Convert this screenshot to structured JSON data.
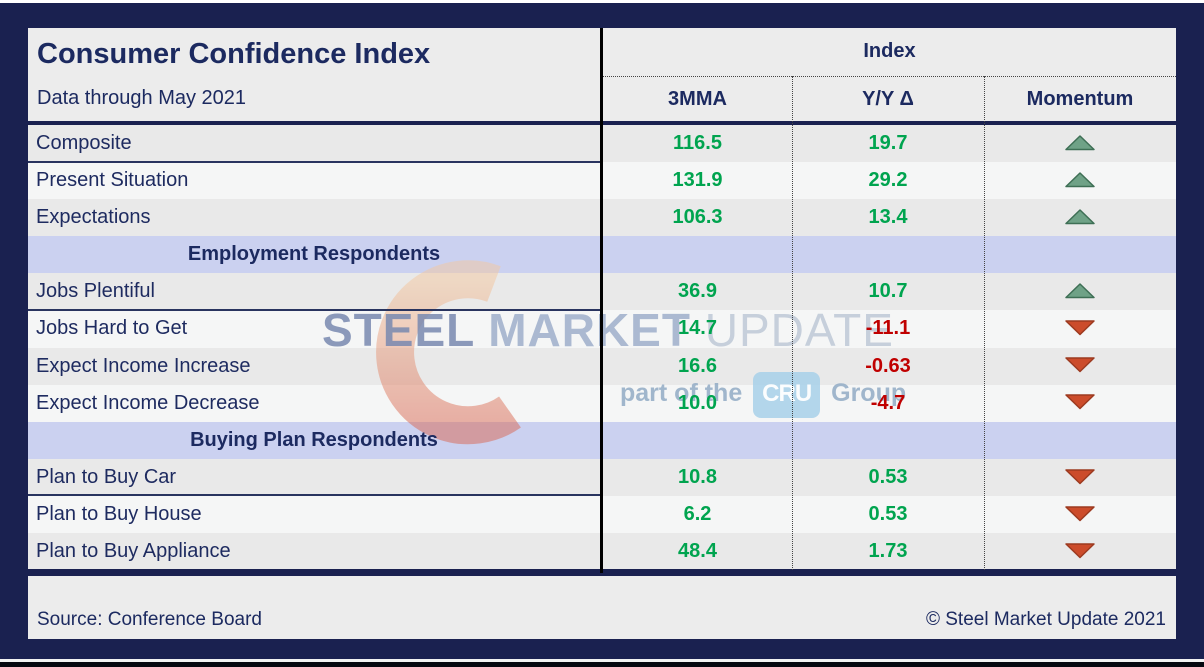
{
  "header": {
    "title": "Consumer Confidence Index",
    "subtitle": "Data through May 2021",
    "index_group_label": "Index",
    "columns": [
      "3MMA",
      "Y/Y Δ",
      "Momentum"
    ]
  },
  "rows": [
    {
      "type": "data",
      "label": "Composite",
      "mma": "116.5",
      "yy": "19.7",
      "momentum": "up",
      "divider": true
    },
    {
      "type": "data",
      "label": "Present Situation",
      "mma": "131.9",
      "yy": "29.2",
      "momentum": "up"
    },
    {
      "type": "data",
      "label": "Expectations",
      "mma": "106.3",
      "yy": "13.4",
      "momentum": "up"
    },
    {
      "type": "section",
      "label": "Employment Respondents"
    },
    {
      "type": "data",
      "label": "Jobs Plentiful",
      "mma": "36.9",
      "yy": "10.7",
      "momentum": "up",
      "divider": true
    },
    {
      "type": "data",
      "label": "Jobs Hard to Get",
      "mma": "14.7",
      "yy": "-11.1",
      "momentum": "down"
    },
    {
      "type": "data",
      "label": "Expect Income Increase",
      "mma": "16.6",
      "yy": "-0.63",
      "momentum": "down"
    },
    {
      "type": "data",
      "label": "Expect Income Decrease",
      "mma": "10.0",
      "yy": "-4.7",
      "momentum": "down"
    },
    {
      "type": "section",
      "label": "Buying Plan Respondents"
    },
    {
      "type": "data",
      "label": "Plan to Buy Car",
      "mma": "10.8",
      "yy": "0.53",
      "momentum": "down",
      "divider": true
    },
    {
      "type": "data",
      "label": "Plan to Buy House",
      "mma": "6.2",
      "yy": "0.53",
      "momentum": "down"
    },
    {
      "type": "data",
      "label": "Plan to Buy Appliance",
      "mma": "48.4",
      "yy": "1.73",
      "momentum": "down"
    }
  ],
  "footer": {
    "source": "Source: Conference Board",
    "copyright": "© Steel Market Update 2021"
  },
  "watermark": {
    "brand": [
      "STEEL",
      "MARKET",
      "UPDATE"
    ],
    "tagline_prefix": "part of the",
    "cru": "CRU",
    "tagline_suffix": "Group"
  },
  "colors": {
    "frame_navy": "#1A2150",
    "text_navy": "#1C2A60",
    "positive_green": "#00A44F",
    "negative_red": "#C00000",
    "section_lavender": "#CBD1F0",
    "row_gray": "#E9E9E9",
    "row_light": "#F5F6F6",
    "up_arrow_fill": "#6FA287",
    "up_arrow_stroke": "#3E6F55",
    "down_arrow_fill": "#CC4C2B",
    "down_arrow_stroke": "#9C3A20"
  },
  "chart_data": {
    "type": "table",
    "title": "Consumer Confidence Index",
    "subtitle": "Data through May 2021",
    "column_group": "Index",
    "columns": [
      "3MMA",
      "Y/Y Δ",
      "Momentum"
    ],
    "sections": [
      {
        "name": null,
        "rows": [
          {
            "label": "Composite",
            "mma_3": 116.5,
            "yoy_delta": 19.7,
            "momentum": "up"
          },
          {
            "label": "Present Situation",
            "mma_3": 131.9,
            "yoy_delta": 29.2,
            "momentum": "up"
          },
          {
            "label": "Expectations",
            "mma_3": 106.3,
            "yoy_delta": 13.4,
            "momentum": "up"
          }
        ]
      },
      {
        "name": "Employment Respondents",
        "rows": [
          {
            "label": "Jobs Plentiful",
            "mma_3": 36.9,
            "yoy_delta": 10.7,
            "momentum": "up"
          },
          {
            "label": "Jobs Hard to Get",
            "mma_3": 14.7,
            "yoy_delta": -11.1,
            "momentum": "down"
          },
          {
            "label": "Expect Income Increase",
            "mma_3": 16.6,
            "yoy_delta": -0.63,
            "momentum": "down"
          },
          {
            "label": "Expect Income Decrease",
            "mma_3": 10.0,
            "yoy_delta": -4.7,
            "momentum": "down"
          }
        ]
      },
      {
        "name": "Buying Plan Respondents",
        "rows": [
          {
            "label": "Plan to Buy Car",
            "mma_3": 10.8,
            "yoy_delta": 0.53,
            "momentum": "down"
          },
          {
            "label": "Plan to Buy House",
            "mma_3": 6.2,
            "yoy_delta": 0.53,
            "momentum": "down"
          },
          {
            "label": "Plan to Buy Appliance",
            "mma_3": 48.4,
            "yoy_delta": 1.73,
            "momentum": "down"
          }
        ]
      }
    ],
    "source": "Conference Board"
  }
}
